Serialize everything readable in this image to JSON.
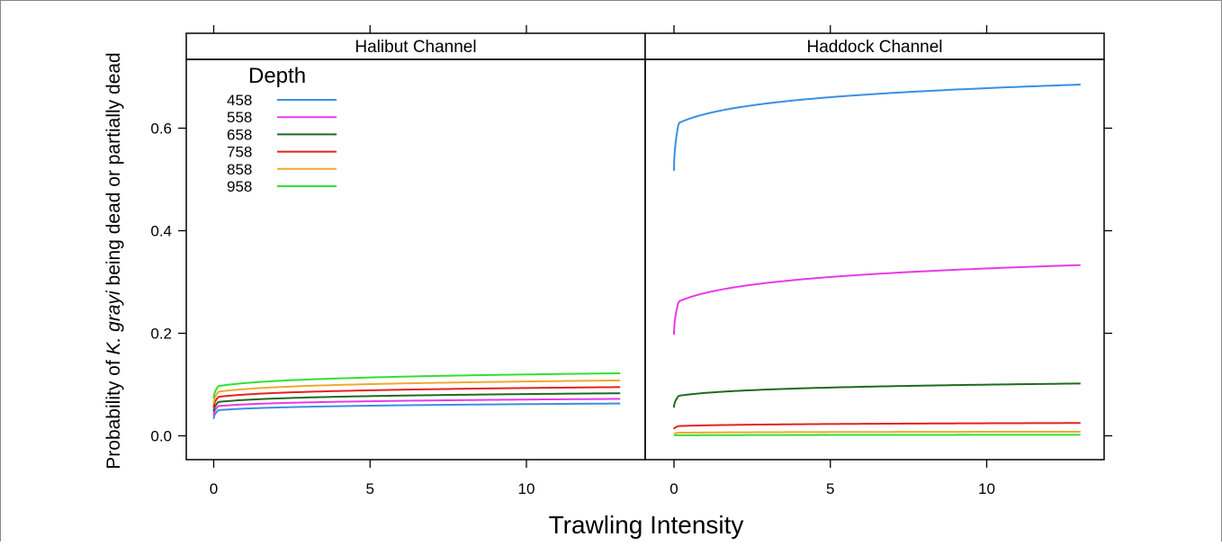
{
  "chart_data": {
    "type": "line",
    "title": "",
    "xlabel": "Trawling Intensity",
    "ylabel_prefix": "Probability of ",
    "ylabel_italic": "K. grayi",
    "ylabel_suffix": " being dead or partially dead",
    "xlim": [
      -0.9,
      13.9
    ],
    "ylim": [
      -0.047,
      0.777
    ],
    "x_ticks": [
      0,
      5,
      10
    ],
    "y_ticks": [
      0.0,
      0.2,
      0.4,
      0.6
    ],
    "y_tick_labels": [
      "0.0",
      "0.2",
      "0.4",
      "0.6"
    ],
    "x_tick_labels": [
      "0",
      "5",
      "10"
    ],
    "legend": {
      "title": "Depth",
      "placement": "top-left of first panel",
      "entries": [
        {
          "label": "458",
          "color": "#3a8fe0"
        },
        {
          "label": "558",
          "color": "#e83ae8"
        },
        {
          "label": "658",
          "color": "#1e6b1e"
        },
        {
          "label": "758",
          "color": "#e82020"
        },
        {
          "label": "858",
          "color": "#f0a830"
        },
        {
          "label": "958",
          "color": "#33e033"
        }
      ]
    },
    "panels": [
      {
        "strip": "Halibut Channel",
        "x_range": [
          0,
          13
        ],
        "series": [
          {
            "name": "458",
            "color": "#3a8fe0",
            "start": 0.033,
            "knee": 0.05,
            "end": 0.063
          },
          {
            "name": "558",
            "color": "#e83ae8",
            "start": 0.04,
            "knee": 0.058,
            "end": 0.072
          },
          {
            "name": "658",
            "color": "#1e6b1e",
            "start": 0.047,
            "knee": 0.066,
            "end": 0.083
          },
          {
            "name": "758",
            "color": "#e82020",
            "start": 0.055,
            "knee": 0.076,
            "end": 0.095
          },
          {
            "name": "858",
            "color": "#f0a830",
            "start": 0.064,
            "knee": 0.086,
            "end": 0.108
          },
          {
            "name": "958",
            "color": "#33e033",
            "start": 0.073,
            "knee": 0.097,
            "end": 0.122
          }
        ]
      },
      {
        "strip": "Haddock Channel",
        "x_range": [
          0,
          13
        ],
        "series": [
          {
            "name": "458",
            "color": "#3a8fe0",
            "start": 0.517,
            "knee": 0.61,
            "end": 0.685
          },
          {
            "name": "558",
            "color": "#e83ae8",
            "start": 0.197,
            "knee": 0.262,
            "end": 0.333
          },
          {
            "name": "658",
            "color": "#1e6b1e",
            "start": 0.055,
            "knee": 0.078,
            "end": 0.102
          },
          {
            "name": "758",
            "color": "#e82020",
            "start": 0.013,
            "knee": 0.019,
            "end": 0.025
          },
          {
            "name": "858",
            "color": "#f0a830",
            "start": 0.004,
            "knee": 0.006,
            "end": 0.008
          },
          {
            "name": "958",
            "color": "#33e033",
            "start": 0.001,
            "knee": 0.001,
            "end": 0.002
          }
        ]
      }
    ]
  }
}
